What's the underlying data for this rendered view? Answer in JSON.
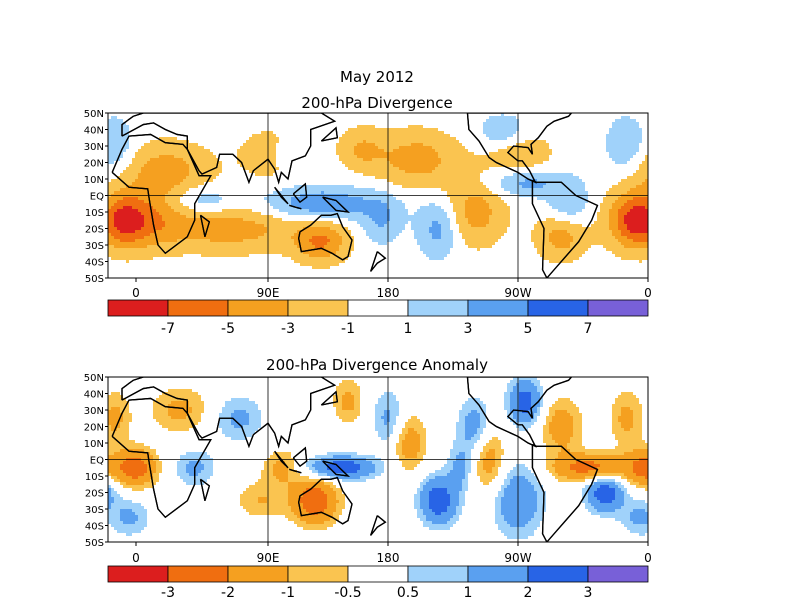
{
  "title": "May 2012",
  "chart_data": [
    {
      "type": "heatmap",
      "title": "200-hPa Divergence",
      "y_tick_labels": [
        "50N",
        "40N",
        "30N",
        "20N",
        "10N",
        "EQ",
        "10S",
        "20S",
        "30S",
        "40S",
        "50S"
      ],
      "x_tick_labels": [
        "0",
        "90E",
        "180",
        "90W",
        "0"
      ],
      "colorbar": {
        "labels": [
          "-7",
          "-5",
          "-3",
          "-1",
          "1",
          "3",
          "5",
          "7"
        ],
        "colors": [
          "#dc1e1e",
          "#f06e10",
          "#f5a020",
          "#fac450",
          "#ffffff",
          "#a0d2fa",
          "#5aa0f0",
          "#2864e6",
          "#7860d8"
        ]
      },
      "features": [
        {
          "lon": 20,
          "lat": 15,
          "sx": 22,
          "sy": 12,
          "v": -4
        },
        {
          "lon": 65,
          "lat": -20,
          "sx": 35,
          "sy": 10,
          "v": -4
        },
        {
          "lon": 5,
          "lat": -15,
          "sx": 20,
          "sy": 12,
          "v": -4
        },
        {
          "lon": 95,
          "lat": 25,
          "sx": 16,
          "sy": 10,
          "v": -3
        },
        {
          "lon": 130,
          "lat": -28,
          "sx": 14,
          "sy": 9,
          "v": -5
        },
        {
          "lon": 160,
          "lat": 28,
          "sx": 12,
          "sy": 9,
          "v": -3
        },
        {
          "lon": 200,
          "lat": 22,
          "sx": 20,
          "sy": 12,
          "v": -4
        },
        {
          "lon": 240,
          "lat": -10,
          "sx": 15,
          "sy": 14,
          "v": -4
        },
        {
          "lon": 270,
          "lat": 25,
          "sx": 16,
          "sy": 10,
          "v": -3
        },
        {
          "lon": 300,
          "lat": -25,
          "sx": 12,
          "sy": 10,
          "v": -4
        },
        {
          "lon": 350,
          "lat": -15,
          "sx": 12,
          "sy": 12,
          "v": -5
        },
        {
          "lon": 130,
          "lat": -5,
          "sx": 30,
          "sy": 7,
          "v": 5
        },
        {
          "lon": 105,
          "lat": 25,
          "sx": 10,
          "sy": 7,
          "v": 3
        },
        {
          "lon": 215,
          "lat": -20,
          "sx": 10,
          "sy": 12,
          "v": 4
        },
        {
          "lon": 175,
          "lat": -15,
          "sx": 10,
          "sy": 10,
          "v": 3
        },
        {
          "lon": 275,
          "lat": 8,
          "sx": 18,
          "sy": 6,
          "v": 4
        },
        {
          "lon": 305,
          "lat": -5,
          "sx": 10,
          "sy": 10,
          "v": 3
        },
        {
          "lon": 45,
          "lat": -3,
          "sx": 14,
          "sy": 6,
          "v": 3
        },
        {
          "lon": 345,
          "lat": 30,
          "sx": 10,
          "sy": 12,
          "v": 3
        },
        {
          "lon": 260,
          "lat": 38,
          "sx": 12,
          "sy": 8,
          "v": 3
        }
      ]
    },
    {
      "type": "heatmap",
      "title": "200-hPa Divergence Anomaly",
      "y_tick_labels": [
        "50N",
        "40N",
        "30N",
        "20N",
        "10N",
        "EQ",
        "10S",
        "20S",
        "30S",
        "40S",
        "50S"
      ],
      "x_tick_labels": [
        "0",
        "90E",
        "180",
        "90W",
        "0"
      ],
      "colorbar": {
        "labels": [
          "-3",
          "-2",
          "-1",
          "-0.5",
          "0.5",
          "1",
          "2",
          "3"
        ],
        "colors": [
          "#dc1e1e",
          "#f06e10",
          "#f5a020",
          "#fac450",
          "#ffffff",
          "#a0d2fa",
          "#5aa0f0",
          "#2864e6",
          "#7860d8"
        ]
      },
      "features": [
        {
          "lon": 0,
          "lat": -5,
          "sx": 10,
          "sy": 8,
          "v": -2.5
        },
        {
          "lon": 125,
          "lat": -25,
          "sx": 12,
          "sy": 10,
          "v": -2.8
        },
        {
          "lon": 320,
          "lat": -5,
          "sx": 18,
          "sy": 6,
          "v": -2.5
        },
        {
          "lon": 145,
          "lat": -5,
          "sx": 18,
          "sy": 5,
          "v": 2.8
        },
        {
          "lon": 215,
          "lat": -25,
          "sx": 9,
          "sy": 10,
          "v": 2.8
        },
        {
          "lon": 330,
          "lat": -20,
          "sx": 9,
          "sy": 8,
          "v": 2.8
        },
        {
          "lon": 275,
          "lat": 35,
          "sx": 8,
          "sy": 10,
          "v": 2.5
        },
        {
          "lon": 270,
          "lat": -25,
          "sx": 12,
          "sy": 15,
          "v": 1.8
        },
        {
          "lon": 240,
          "lat": 20,
          "sx": 8,
          "sy": 12,
          "v": 1.5
        },
        {
          "lon": 180,
          "lat": 25,
          "sx": 8,
          "sy": 12,
          "v": 1.2
        },
        {
          "lon": 40,
          "lat": -5,
          "sx": 10,
          "sy": 8,
          "v": 1.2
        },
        {
          "lon": 70,
          "lat": 25,
          "sx": 12,
          "sy": 10,
          "v": 1.2
        },
        {
          "lon": 195,
          "lat": 10,
          "sx": 8,
          "sy": 12,
          "v": -1.5
        },
        {
          "lon": 250,
          "lat": 0,
          "sx": 8,
          "sy": 14,
          "v": -1.5
        },
        {
          "lon": 300,
          "lat": 20,
          "sx": 10,
          "sy": 12,
          "v": -1.5
        },
        {
          "lon": 345,
          "lat": 25,
          "sx": 8,
          "sy": 12,
          "v": -1.2
        },
        {
          "lon": 100,
          "lat": -5,
          "sx": 10,
          "sy": 8,
          "v": -1.2
        },
        {
          "lon": 30,
          "lat": 30,
          "sx": 14,
          "sy": 10,
          "v": -1.2
        },
        {
          "lon": 85,
          "lat": -25,
          "sx": 12,
          "sy": 8,
          "v": -1.0
        },
        {
          "lon": 150,
          "lat": 35,
          "sx": 8,
          "sy": 10,
          "v": -1.2
        },
        {
          "lon": 230,
          "lat": -5,
          "sx": 6,
          "sy": 10,
          "v": 1.2
        },
        {
          "lon": 355,
          "lat": -35,
          "sx": 10,
          "sy": 8,
          "v": 1.2
        }
      ]
    }
  ]
}
